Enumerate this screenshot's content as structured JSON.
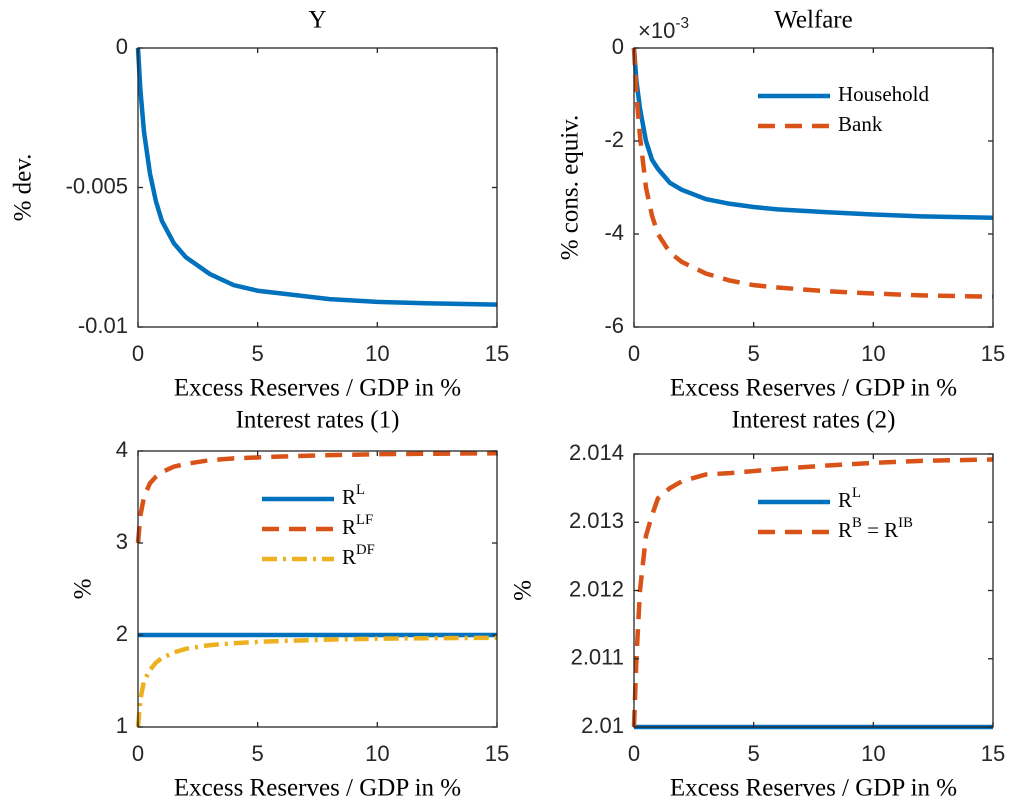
{
  "chart_data": [
    {
      "type": "line",
      "title": "Y",
      "xlabel": "Excess Reserves / GDP in %",
      "ylabel": "% dev.",
      "x": [
        0,
        0.1,
        0.25,
        0.5,
        0.75,
        1,
        1.5,
        2,
        3,
        4,
        5,
        6,
        8,
        10,
        12,
        15
      ],
      "series": [
        {
          "color": "#0072BD",
          "dash": "solid",
          "values": [
            0,
            -0.0015,
            -0.003,
            -0.0045,
            -0.0055,
            -0.0062,
            -0.007,
            -0.0075,
            -0.0081,
            -0.0085,
            -0.0087,
            -0.0088,
            -0.009,
            -0.0091,
            -0.00915,
            -0.0092
          ]
        }
      ],
      "xlim": [
        0,
        15
      ],
      "xticks": [
        0,
        5,
        10,
        15
      ],
      "ylim": [
        -0.01,
        0
      ],
      "yticks": [
        -0.01,
        -0.005,
        0
      ]
    },
    {
      "type": "line",
      "title": "Welfare",
      "xlabel": "Excess Reserves / GDP in %",
      "ylabel": "% cons. equiv.",
      "axis_multiplier": "×10^{-3}",
      "x": [
        0,
        0.1,
        0.25,
        0.5,
        0.75,
        1,
        1.5,
        2,
        3,
        4,
        5,
        6,
        8,
        10,
        12,
        15
      ],
      "series": [
        {
          "name": "Household",
          "color": "#0072BD",
          "dash": "solid",
          "values": [
            0,
            -0.7,
            -1.3,
            -2.0,
            -2.4,
            -2.6,
            -2.9,
            -3.05,
            -3.25,
            -3.35,
            -3.42,
            -3.47,
            -3.53,
            -3.58,
            -3.62,
            -3.65
          ]
        },
        {
          "name": "Bank",
          "color": "#D95319",
          "dash": "dashed",
          "values": [
            0,
            -1.0,
            -1.9,
            -3.0,
            -3.6,
            -4.0,
            -4.4,
            -4.6,
            -4.85,
            -5.0,
            -5.1,
            -5.15,
            -5.23,
            -5.28,
            -5.32,
            -5.35
          ]
        }
      ],
      "xlim": [
        0,
        15
      ],
      "xticks": [
        0,
        5,
        10,
        15
      ],
      "ylim": [
        -6,
        0
      ],
      "yticks": [
        -6,
        -4,
        -2,
        0
      ],
      "legend": "northeast"
    },
    {
      "type": "line",
      "title": "Interest rates (1)",
      "xlabel": "Excess Reserves / GDP in %",
      "ylabel": "%",
      "x": [
        0,
        0.1,
        0.25,
        0.5,
        0.75,
        1,
        1.5,
        2,
        3,
        4,
        5,
        6,
        8,
        10,
        12,
        15
      ],
      "series": [
        {
          "name": "R^L",
          "color": "#0072BD",
          "dash": "solid",
          "values": [
            2,
            2,
            2,
            2,
            2,
            2,
            2,
            2,
            2,
            2,
            2,
            2,
            2,
            2,
            2,
            2
          ]
        },
        {
          "name": "R^{LF}",
          "color": "#D95319",
          "dash": "dashed",
          "values": [
            3,
            3.3,
            3.5,
            3.65,
            3.72,
            3.77,
            3.83,
            3.86,
            3.9,
            3.92,
            3.93,
            3.94,
            3.955,
            3.965,
            3.97,
            3.975
          ]
        },
        {
          "name": "R^{DF}",
          "color": "#EDB120",
          "dash": "dashdot",
          "values": [
            1,
            1.3,
            1.5,
            1.62,
            1.7,
            1.75,
            1.81,
            1.85,
            1.89,
            1.91,
            1.925,
            1.935,
            1.95,
            1.96,
            1.965,
            1.97
          ]
        }
      ],
      "xlim": [
        0,
        15
      ],
      "xticks": [
        0,
        5,
        10,
        15
      ],
      "ylim": [
        1,
        4
      ],
      "yticks": [
        1,
        2,
        3,
        4
      ],
      "legend": "northeast"
    },
    {
      "type": "line",
      "title": "Interest rates (2)",
      "xlabel": "Excess Reserves / GDP in %",
      "ylabel": "%",
      "x": [
        0,
        0.1,
        0.25,
        0.5,
        0.75,
        1,
        1.5,
        2,
        3,
        4,
        5,
        6,
        8,
        10,
        12,
        15
      ],
      "series": [
        {
          "name": "R^L",
          "color": "#0072BD",
          "dash": "solid",
          "values": [
            2.01,
            2.01,
            2.01,
            2.01,
            2.01,
            2.01,
            2.01,
            2.01,
            2.01,
            2.01,
            2.01,
            2.01,
            2.01,
            2.01,
            2.01,
            2.01
          ]
        },
        {
          "name": "R^B = R^{IB}",
          "color": "#D95319",
          "dash": "dashed",
          "values": [
            2.01,
            2.011,
            2.012,
            2.0128,
            2.0131,
            2.01335,
            2.0135,
            2.0136,
            2.0137,
            2.01372,
            2.01375,
            2.01378,
            2.01383,
            2.01387,
            2.0139,
            2.01392
          ]
        }
      ],
      "xlim": [
        0,
        15
      ],
      "xticks": [
        0,
        5,
        10,
        15
      ],
      "ylim": [
        2.01,
        2.014
      ],
      "yticks": [
        2.01,
        2.011,
        2.012,
        2.013,
        2.014
      ],
      "legend": "northeast"
    }
  ]
}
